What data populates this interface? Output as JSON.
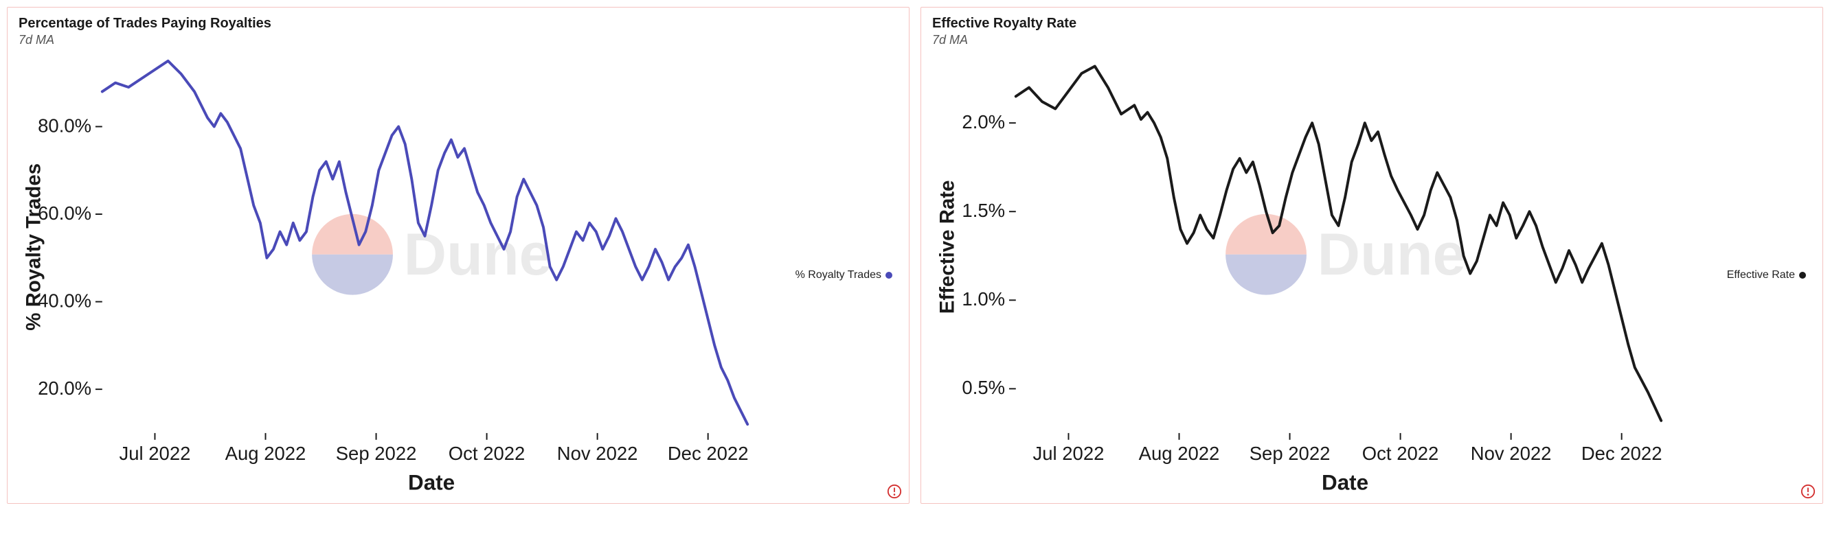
{
  "charts": [
    {
      "id": "chart-royalty-pct",
      "title": "Percentage of Trades Paying Royalties",
      "subtitle": "7d MA",
      "type": "line",
      "border_color": "#f5c2c0",
      "background_color": "#ffffff",
      "line_color": "#4a4ab8",
      "line_width": 2,
      "legend_label": "% Royalty Trades",
      "legend_dot_color": "#4a4ab8",
      "x_axis": {
        "label": "Date",
        "ticks": [
          "Jul 2022",
          "Aug 2022",
          "Sep 2022",
          "Oct 2022",
          "Nov 2022",
          "Dec 2022"
        ],
        "label_fontsize": 16,
        "tick_fontsize": 14
      },
      "y_axis": {
        "label": "% Royalty Trades",
        "ticks": [
          20.0,
          40.0,
          60.0,
          80.0
        ],
        "tick_format": "pct1",
        "ylim": [
          10,
          95
        ],
        "label_fontsize": 15,
        "tick_fontsize": 14
      },
      "watermark": {
        "text": "Dune",
        "logo_top_color": "#f4b3a9",
        "logo_bottom_color": "#a8aed6",
        "text_color": "#d8d8d8"
      },
      "alert_color": "#d32f2f",
      "series": [
        [
          0.0,
          88
        ],
        [
          0.02,
          90
        ],
        [
          0.04,
          89
        ],
        [
          0.06,
          91
        ],
        [
          0.08,
          93
        ],
        [
          0.1,
          95
        ],
        [
          0.12,
          92
        ],
        [
          0.14,
          88
        ],
        [
          0.16,
          82
        ],
        [
          0.17,
          80
        ],
        [
          0.18,
          83
        ],
        [
          0.19,
          81
        ],
        [
          0.21,
          75
        ],
        [
          0.23,
          62
        ],
        [
          0.24,
          58
        ],
        [
          0.25,
          50
        ],
        [
          0.26,
          52
        ],
        [
          0.27,
          56
        ],
        [
          0.28,
          53
        ],
        [
          0.29,
          58
        ],
        [
          0.3,
          54
        ],
        [
          0.31,
          56
        ],
        [
          0.32,
          64
        ],
        [
          0.33,
          70
        ],
        [
          0.34,
          72
        ],
        [
          0.35,
          68
        ],
        [
          0.36,
          72
        ],
        [
          0.37,
          65
        ],
        [
          0.38,
          59
        ],
        [
          0.39,
          53
        ],
        [
          0.4,
          56
        ],
        [
          0.41,
          62
        ],
        [
          0.42,
          70
        ],
        [
          0.43,
          74
        ],
        [
          0.44,
          78
        ],
        [
          0.45,
          80
        ],
        [
          0.46,
          76
        ],
        [
          0.47,
          68
        ],
        [
          0.48,
          58
        ],
        [
          0.49,
          55
        ],
        [
          0.5,
          62
        ],
        [
          0.51,
          70
        ],
        [
          0.52,
          74
        ],
        [
          0.53,
          77
        ],
        [
          0.54,
          73
        ],
        [
          0.55,
          75
        ],
        [
          0.56,
          70
        ],
        [
          0.57,
          65
        ],
        [
          0.58,
          62
        ],
        [
          0.59,
          58
        ],
        [
          0.6,
          55
        ],
        [
          0.61,
          52
        ],
        [
          0.62,
          56
        ],
        [
          0.63,
          64
        ],
        [
          0.64,
          68
        ],
        [
          0.65,
          65
        ],
        [
          0.66,
          62
        ],
        [
          0.67,
          57
        ],
        [
          0.68,
          48
        ],
        [
          0.69,
          45
        ],
        [
          0.7,
          48
        ],
        [
          0.71,
          52
        ],
        [
          0.72,
          56
        ],
        [
          0.73,
          54
        ],
        [
          0.74,
          58
        ],
        [
          0.75,
          56
        ],
        [
          0.76,
          52
        ],
        [
          0.77,
          55
        ],
        [
          0.78,
          59
        ],
        [
          0.79,
          56
        ],
        [
          0.8,
          52
        ],
        [
          0.81,
          48
        ],
        [
          0.82,
          45
        ],
        [
          0.83,
          48
        ],
        [
          0.84,
          52
        ],
        [
          0.85,
          49
        ],
        [
          0.86,
          45
        ],
        [
          0.87,
          48
        ],
        [
          0.88,
          50
        ],
        [
          0.89,
          53
        ],
        [
          0.9,
          48
        ],
        [
          0.91,
          42
        ],
        [
          0.92,
          36
        ],
        [
          0.93,
          30
        ],
        [
          0.94,
          25
        ],
        [
          0.95,
          22
        ],
        [
          0.96,
          18
        ],
        [
          0.97,
          15
        ],
        [
          0.98,
          12
        ]
      ]
    },
    {
      "id": "chart-effective-rate",
      "title": "Effective Royalty Rate",
      "subtitle": "7d MA",
      "type": "line",
      "border_color": "#f5c2c0",
      "background_color": "#ffffff",
      "line_color": "#1a1a1a",
      "line_width": 2,
      "legend_label": "Effective Rate",
      "legend_dot_color": "#1a1a1a",
      "x_axis": {
        "label": "Date",
        "ticks": [
          "Jul 2022",
          "Aug 2022",
          "Sep 2022",
          "Oct 2022",
          "Nov 2022",
          "Dec 2022"
        ],
        "label_fontsize": 16,
        "tick_fontsize": 14
      },
      "y_axis": {
        "label": "Effective Rate",
        "ticks": [
          0.5,
          1.0,
          1.5,
          2.0
        ],
        "tick_format": "pct_dec",
        "ylim": [
          0.25,
          2.35
        ],
        "label_fontsize": 15,
        "tick_fontsize": 14
      },
      "watermark": {
        "text": "Dune",
        "logo_top_color": "#f4b3a9",
        "logo_bottom_color": "#a8aed6",
        "text_color": "#d8d8d8"
      },
      "alert_color": "#d32f2f",
      "series": [
        [
          0.0,
          2.15
        ],
        [
          0.02,
          2.2
        ],
        [
          0.04,
          2.12
        ],
        [
          0.06,
          2.08
        ],
        [
          0.08,
          2.18
        ],
        [
          0.1,
          2.28
        ],
        [
          0.12,
          2.32
        ],
        [
          0.14,
          2.2
        ],
        [
          0.16,
          2.05
        ],
        [
          0.18,
          2.1
        ],
        [
          0.19,
          2.02
        ],
        [
          0.2,
          2.06
        ],
        [
          0.21,
          2.0
        ],
        [
          0.22,
          1.92
        ],
        [
          0.23,
          1.8
        ],
        [
          0.24,
          1.58
        ],
        [
          0.25,
          1.4
        ],
        [
          0.26,
          1.32
        ],
        [
          0.27,
          1.38
        ],
        [
          0.28,
          1.48
        ],
        [
          0.29,
          1.4
        ],
        [
          0.3,
          1.35
        ],
        [
          0.31,
          1.48
        ],
        [
          0.32,
          1.62
        ],
        [
          0.33,
          1.74
        ],
        [
          0.34,
          1.8
        ],
        [
          0.35,
          1.72
        ],
        [
          0.36,
          1.78
        ],
        [
          0.37,
          1.65
        ],
        [
          0.38,
          1.5
        ],
        [
          0.39,
          1.38
        ],
        [
          0.4,
          1.42
        ],
        [
          0.41,
          1.58
        ],
        [
          0.42,
          1.72
        ],
        [
          0.43,
          1.82
        ],
        [
          0.44,
          1.92
        ],
        [
          0.45,
          2.0
        ],
        [
          0.46,
          1.88
        ],
        [
          0.47,
          1.68
        ],
        [
          0.48,
          1.48
        ],
        [
          0.49,
          1.42
        ],
        [
          0.5,
          1.58
        ],
        [
          0.51,
          1.78
        ],
        [
          0.52,
          1.88
        ],
        [
          0.53,
          2.0
        ],
        [
          0.54,
          1.9
        ],
        [
          0.55,
          1.95
        ],
        [
          0.56,
          1.82
        ],
        [
          0.57,
          1.7
        ],
        [
          0.58,
          1.62
        ],
        [
          0.59,
          1.55
        ],
        [
          0.6,
          1.48
        ],
        [
          0.61,
          1.4
        ],
        [
          0.62,
          1.48
        ],
        [
          0.63,
          1.62
        ],
        [
          0.64,
          1.72
        ],
        [
          0.65,
          1.65
        ],
        [
          0.66,
          1.58
        ],
        [
          0.67,
          1.45
        ],
        [
          0.68,
          1.25
        ],
        [
          0.69,
          1.15
        ],
        [
          0.7,
          1.22
        ],
        [
          0.71,
          1.35
        ],
        [
          0.72,
          1.48
        ],
        [
          0.73,
          1.42
        ],
        [
          0.74,
          1.55
        ],
        [
          0.75,
          1.48
        ],
        [
          0.76,
          1.35
        ],
        [
          0.77,
          1.42
        ],
        [
          0.78,
          1.5
        ],
        [
          0.79,
          1.42
        ],
        [
          0.8,
          1.3
        ],
        [
          0.81,
          1.2
        ],
        [
          0.82,
          1.1
        ],
        [
          0.83,
          1.18
        ],
        [
          0.84,
          1.28
        ],
        [
          0.85,
          1.2
        ],
        [
          0.86,
          1.1
        ],
        [
          0.87,
          1.18
        ],
        [
          0.88,
          1.25
        ],
        [
          0.89,
          1.32
        ],
        [
          0.9,
          1.2
        ],
        [
          0.91,
          1.05
        ],
        [
          0.92,
          0.9
        ],
        [
          0.93,
          0.75
        ],
        [
          0.94,
          0.62
        ],
        [
          0.95,
          0.55
        ],
        [
          0.96,
          0.48
        ],
        [
          0.97,
          0.4
        ],
        [
          0.98,
          0.32
        ]
      ]
    }
  ]
}
